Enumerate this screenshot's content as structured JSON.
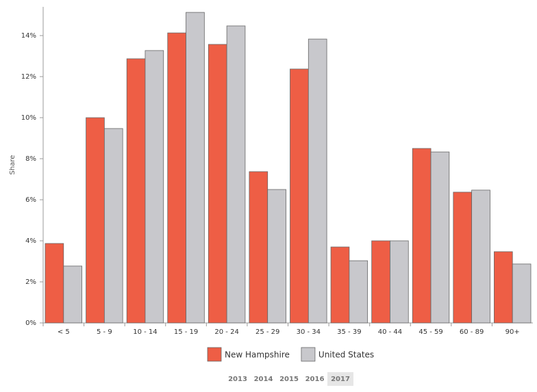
{
  "chart_data": {
    "type": "bar",
    "y_label": "Share",
    "categories": [
      "< 5",
      "5 - 9",
      "10 - 14",
      "15 - 19",
      "20 - 24",
      "25 - 29",
      "30 - 34",
      "35 - 39",
      "40 - 44",
      "45 - 59",
      "60 - 89",
      "90+"
    ],
    "series": [
      {
        "name": "New Hampshire",
        "color": "#ee5e45",
        "values": [
          3.87,
          10.0,
          12.87,
          14.13,
          13.57,
          7.37,
          12.37,
          3.7,
          4.0,
          8.5,
          6.37,
          3.47
        ]
      },
      {
        "name": "United States",
        "color": "#c8c8cc",
        "values": [
          2.77,
          9.47,
          13.27,
          15.13,
          14.47,
          6.5,
          13.83,
          3.03,
          4.0,
          8.33,
          6.47,
          2.87
        ]
      }
    ],
    "ylim": [
      0,
      15.4
    ],
    "yticks": [
      {
        "value": 0,
        "label": "0%"
      },
      {
        "value": 2,
        "label": "2%"
      },
      {
        "value": 4,
        "label": "4%"
      },
      {
        "value": 6,
        "label": "6%"
      },
      {
        "value": 8,
        "label": "8%"
      },
      {
        "value": 10,
        "label": "10%"
      },
      {
        "value": 12,
        "label": "12%"
      },
      {
        "value": 14,
        "label": "14%"
      }
    ],
    "grid": false
  },
  "controls": {
    "years": [
      "2013",
      "2014",
      "2015",
      "2016",
      "2017"
    ],
    "selected_year": "2017"
  }
}
